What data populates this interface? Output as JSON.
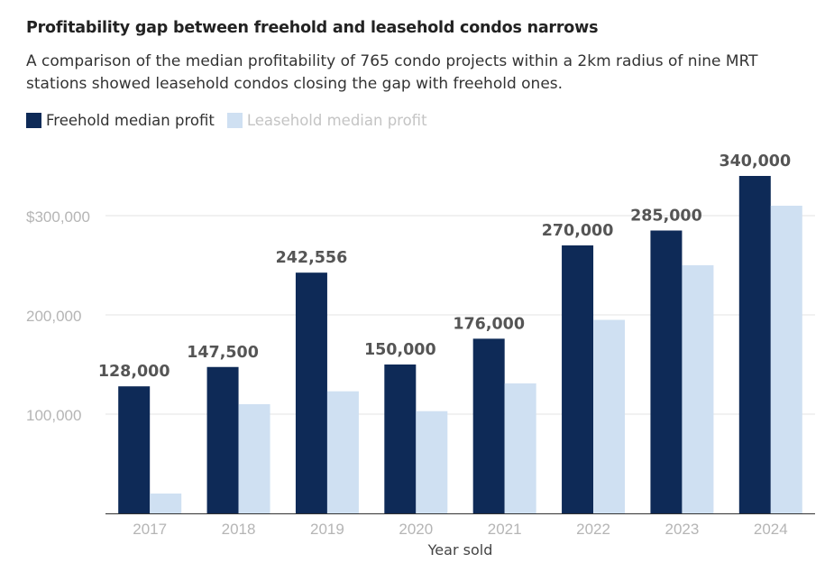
{
  "title": "Profitability gap between freehold and leasehold condos narrows",
  "subtitle": "A comparison of the median profitability of 765 condo projects within a 2km radius of nine MRT stations showed leasehold condos closing the gap with freehold ones.",
  "colors": {
    "freehold": "#0e2a57",
    "leasehold": "#cfe0f2",
    "grid": "#e3e3e3",
    "tick": "#b5b5b5",
    "label": "#555555"
  },
  "legend": [
    {
      "label": "Freehold median profit",
      "color": "#0e2a57",
      "text_color": "#333333"
    },
    {
      "label": "Leasehold median profit",
      "color": "#cfe0f2",
      "text_color": "#c4c4c4"
    }
  ],
  "chart_data": {
    "type": "bar",
    "title": "Profitability gap between freehold and leasehold condos narrows",
    "xlabel": "Year sold",
    "ylabel": "",
    "categories": [
      "2017",
      "2018",
      "2019",
      "2020",
      "2021",
      "2022",
      "2023",
      "2024"
    ],
    "series": [
      {
        "name": "Freehold median profit",
        "values": [
          128000,
          147500,
          242556,
          150000,
          176000,
          270000,
          285000,
          340000
        ],
        "labeled": true
      },
      {
        "name": "Leasehold median profit",
        "values": [
          20000,
          110000,
          123000,
          103000,
          131000,
          195000,
          250000,
          310000
        ],
        "labeled": false
      }
    ],
    "data_labels": [
      "128,000",
      "147,500",
      "242,556",
      "150,000",
      "176,000",
      "270,000",
      "285,000",
      "340,000"
    ],
    "yticks": [
      100000,
      200000,
      300000
    ],
    "ytick_labels": [
      "100,000",
      "200,000",
      "$300,000"
    ],
    "ylim": [
      0,
      340000
    ],
    "grid": true,
    "legend_position": "top-left"
  }
}
